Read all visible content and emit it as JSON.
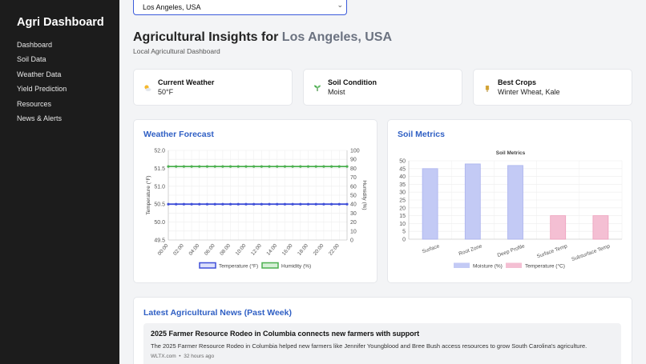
{
  "sidebar": {
    "brand": "Agri Dashboard",
    "items": [
      {
        "label": "Dashboard"
      },
      {
        "label": "Soil Data"
      },
      {
        "label": "Weather Data"
      },
      {
        "label": "Yield Prediction"
      },
      {
        "label": "Resources"
      },
      {
        "label": "News & Alerts"
      }
    ]
  },
  "location": {
    "selected": "Los Angeles, USA"
  },
  "header": {
    "title_prefix": "Agricultural Insights for",
    "title_city": "Los Angeles, USA",
    "subtitle": "Local Agricultural Dashboard"
  },
  "stats": [
    {
      "icon": "sun-cloud-icon",
      "label": "Current Weather",
      "value": "50°F"
    },
    {
      "icon": "seedling-icon",
      "label": "Soil Condition",
      "value": "Moist"
    },
    {
      "icon": "wheat-icon",
      "label": "Best Crops",
      "value": "Winter Wheat, Kale"
    }
  ],
  "weather_panel": {
    "title": "Weather Forecast"
  },
  "soil_panel": {
    "title": "Soil Metrics"
  },
  "news_panel": {
    "title": "Latest Agricultural News (Past Week)",
    "items": [
      {
        "headline": "2025 Farmer Resource Rodeo in Columbia connects new farmers with support",
        "description": "The 2025 Farmer Resource Rodeo in Columbia helped new farmers like Jennifer Youngblood and Bree Bush access resources to grow South Carolina's agriculture.",
        "source": "WLTX.com",
        "separator": "•",
        "time": "32 hours ago"
      }
    ]
  },
  "colors": {
    "temperature": "#3f4fd8",
    "humidity": "#4cb050",
    "moisture": "#c3caf5",
    "soil_temperature": "#f4bfd3",
    "accent": "#2f5fc4"
  },
  "chart_data": [
    {
      "type": "line",
      "title": "",
      "x": [
        "00:00",
        "01:00",
        "02:00",
        "03:00",
        "04:00",
        "05:00",
        "06:00",
        "07:00",
        "08:00",
        "09:00",
        "10:00",
        "11:00",
        "12:00",
        "13:00",
        "14:00",
        "15:00",
        "16:00",
        "17:00",
        "18:00",
        "19:00",
        "20:00",
        "21:00",
        "22:00",
        "23:00"
      ],
      "x_tick_labels": [
        "00:00",
        "02:00",
        "04:00",
        "06:00",
        "08:00",
        "10:00",
        "12:00",
        "14:00",
        "16:00",
        "18:00",
        "20:00",
        "22:00"
      ],
      "series": [
        {
          "name": "Temperature (°F)",
          "axis": "left",
          "values": [
            50.5,
            50.5,
            50.5,
            50.5,
            50.5,
            50.5,
            50.5,
            50.5,
            50.5,
            50.5,
            50.5,
            50.5,
            50.5,
            50.5,
            50.5,
            50.5,
            50.5,
            50.5,
            50.5,
            50.5,
            50.5,
            50.5,
            50.5,
            50.5
          ]
        },
        {
          "name": "Humidity (%)",
          "axis": "right",
          "values": [
            82,
            82,
            82,
            82,
            82,
            82,
            82,
            82,
            82,
            82,
            82,
            82,
            82,
            82,
            82,
            82,
            82,
            82,
            82,
            82,
            82,
            82,
            82,
            82
          ]
        }
      ],
      "ylabel": "Temperature (°F)",
      "y2label": "Humidity (%)",
      "ylim": [
        49.5,
        52.0
      ],
      "yticks": [
        "52.0",
        "51.5",
        "51.0",
        "50.5",
        "50.0",
        "49.5"
      ],
      "y2lim": [
        0,
        100
      ],
      "y2ticks": [
        "100",
        "90",
        "80",
        "70",
        "60",
        "50",
        "40",
        "30",
        "20",
        "10",
        "0"
      ],
      "legend": "bottom",
      "grid": true
    },
    {
      "type": "bar",
      "title": "Soil Metrics",
      "categories": [
        "Surface",
        "Root Zone",
        "Deep Profile",
        "Surface Temp",
        "Subsurface Temp"
      ],
      "series": [
        {
          "name": "Moisture (%)",
          "values": [
            45,
            48,
            47,
            null,
            null
          ]
        },
        {
          "name": "Temperature (°C)",
          "values": [
            null,
            null,
            null,
            15,
            15
          ]
        }
      ],
      "ylim": [
        0,
        50
      ],
      "yticks": [
        "50",
        "45",
        "40",
        "35",
        "30",
        "25",
        "20",
        "15",
        "10",
        "5",
        "0"
      ],
      "legend": "bottom",
      "grid": true
    }
  ]
}
